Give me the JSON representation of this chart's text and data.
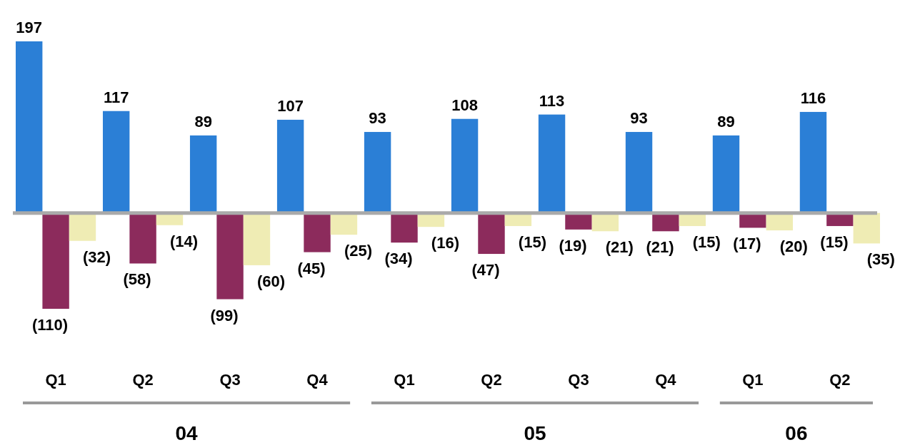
{
  "chart_data": {
    "type": "bar",
    "categories": [
      "Q1",
      "Q2",
      "Q3",
      "Q4",
      "Q1",
      "Q2",
      "Q3",
      "Q4",
      "Q1",
      "Q2"
    ],
    "series": [
      {
        "color": "#2b7fd6",
        "values": [
          197,
          117,
          89,
          107,
          93,
          108,
          113,
          93,
          89,
          116
        ],
        "value_labels": [
          "197",
          "117",
          "89",
          "107",
          "93",
          "108",
          "113",
          "93",
          "89",
          "116"
        ]
      },
      {
        "color": "#8c2b5c",
        "values": [
          -110,
          -58,
          -99,
          -45,
          -34,
          -47,
          -19,
          -21,
          -17,
          -15
        ],
        "value_labels": [
          "(110)",
          "(58)",
          "(99)",
          "(45)",
          "(34)",
          "(47)",
          "(19)",
          "(21)",
          "(17)",
          "(15)"
        ]
      },
      {
        "color": "#efecb4",
        "values": [
          -32,
          -14,
          -60,
          -25,
          -16,
          -15,
          -21,
          -15,
          -20,
          -35
        ],
        "value_labels": [
          "(32)",
          "(14)",
          "(60)",
          "(25)",
          "(16)",
          "(15)",
          "(21)",
          "(15)",
          "(20)",
          "(35)"
        ]
      }
    ],
    "annotations": [
      "04",
      "05",
      "06"
    ]
  }
}
